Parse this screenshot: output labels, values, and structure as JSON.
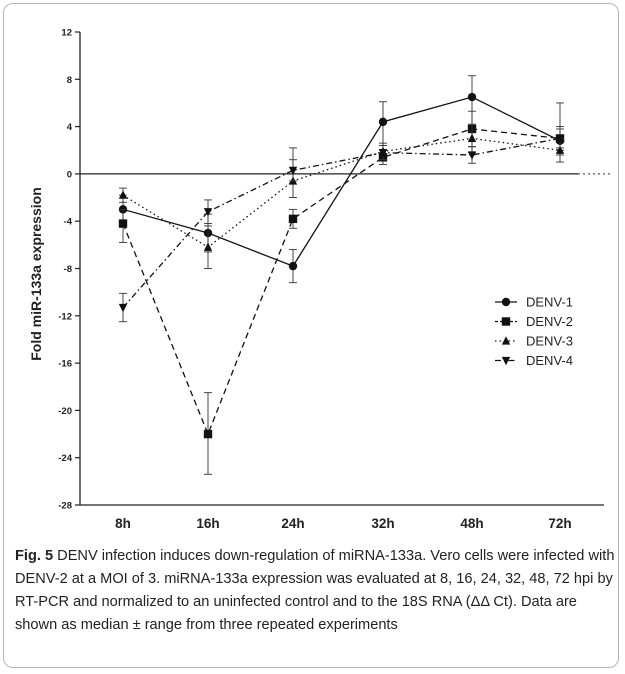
{
  "chart_data": {
    "type": "line",
    "title": "",
    "xlabel": "",
    "ylabel": "Fold miR-133a expression",
    "categories": [
      "8h",
      "16h",
      "24h",
      "32h",
      "48h",
      "72h"
    ],
    "ylim": [
      -28,
      12
    ],
    "yticks": [
      12,
      8,
      4,
      0,
      -4,
      -8,
      -12,
      -16,
      -20,
      -24,
      -28
    ],
    "grid": false,
    "legend_position": "right",
    "series": [
      {
        "name": "DENV-1",
        "marker": "circle",
        "dash": "solid",
        "values": [
          -3.0,
          -5.0,
          -7.8,
          4.4,
          6.5,
          2.8
        ],
        "err_low": [
          1.2,
          1.6,
          1.4,
          2.7,
          2.7,
          1.2
        ],
        "err_high": [
          1.2,
          1.6,
          1.4,
          1.7,
          1.8,
          1.2
        ]
      },
      {
        "name": "DENV-2",
        "marker": "square",
        "dash": "dashed",
        "values": [
          -4.2,
          -22.0,
          -3.8,
          1.4,
          3.8,
          3.0
        ],
        "err_low": [
          1.6,
          3.4,
          0.8,
          0.6,
          1.5,
          1.0
        ],
        "err_high": [
          1.2,
          3.5,
          0.8,
          0.6,
          1.5,
          3.0
        ]
      },
      {
        "name": "DENV-3",
        "marker": "triangle-up",
        "dash": "dotted",
        "values": [
          -1.8,
          -6.2,
          -0.6,
          1.9,
          3.0,
          2.0
        ],
        "err_low": [
          0.6,
          1.8,
          1.4,
          0.7,
          1.2,
          1.0
        ],
        "err_high": [
          0.6,
          1.8,
          2.8,
          0.7,
          1.2,
          1.0
        ]
      },
      {
        "name": "DENV-4",
        "marker": "triangle-down",
        "dash": "dashdot",
        "values": [
          -11.3,
          -3.2,
          0.3,
          1.8,
          1.6,
          3.0
        ],
        "err_low": [
          1.2,
          1.0,
          0.9,
          0.6,
          0.7,
          0.8
        ],
        "err_high": [
          1.2,
          1.0,
          0.9,
          0.6,
          0.7,
          0.8
        ]
      }
    ]
  },
  "caption": {
    "label": "Fig. 5",
    "text": " DENV infection induces down-regulation of miRNA-133a. Vero cells were infected with DENV-2 at a MOI of 3. miRNA-133a expression was evaluated at 8, 16, 24, 32, 48, 72 hpi by RT-PCR and normalized to an uninfected control and to the 18S RNA (ΔΔ Ct). Data are shown as median ± range from three repeated experiments"
  }
}
